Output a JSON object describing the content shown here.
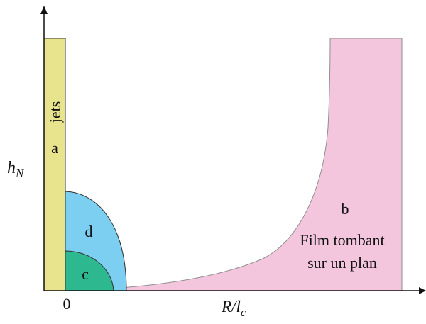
{
  "axes": {
    "ylabel_main": "h",
    "ylabel_sub": "N",
    "xlabel_main": "R/l",
    "xlabel_sub": "c",
    "origin_label": "0"
  },
  "regions": {
    "a": {
      "letter": "a",
      "name": "jets",
      "color": "#e8e48e"
    },
    "b": {
      "letter": "b",
      "line1": "Film tombant",
      "line2": "sur un plan",
      "color": "#f4c6de"
    },
    "c": {
      "letter": "c",
      "color": "#2db890"
    },
    "d": {
      "letter": "d",
      "color": "#7dcff2"
    }
  }
}
